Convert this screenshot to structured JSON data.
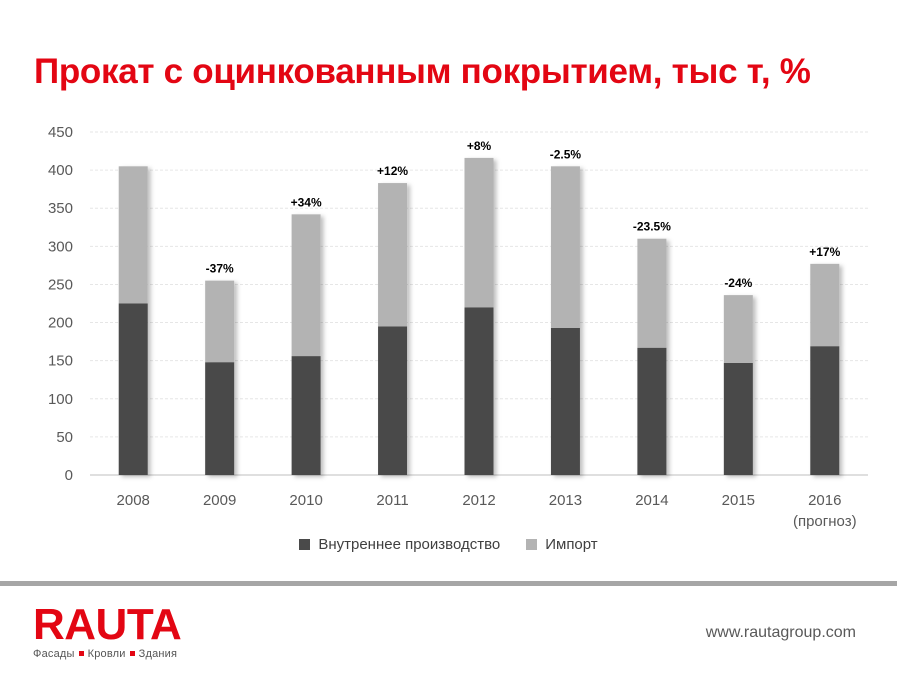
{
  "slide": {
    "title": "Прокат с оцинкованным покрытием, тыс т, %",
    "title_color": "#e30613"
  },
  "chart_data": {
    "type": "bar",
    "stacked": true,
    "categories": [
      "2008",
      "2009",
      "2010",
      "2011",
      "2012",
      "2013",
      "2014",
      "2015",
      "2016"
    ],
    "category_sublabels": [
      "",
      "",
      "",
      "",
      "",
      "",
      "",
      "",
      "(прогноз)"
    ],
    "series": [
      {
        "name": "Внутреннее производство",
        "color": "#4a4a4a",
        "values": [
          225,
          148,
          156,
          195,
          220,
          193,
          167,
          147,
          169
        ]
      },
      {
        "name": "Импорт",
        "color": "#b3b3b3",
        "values": [
          180,
          107,
          186,
          188,
          196,
          212,
          143,
          89,
          108
        ]
      }
    ],
    "annotations": [
      "",
      "-37%",
      "+34%",
      "+12%",
      "+8%",
      "-2.5%",
      "-23.5%",
      "-24%",
      "+17%"
    ],
    "ylim": [
      0,
      450
    ],
    "yticks": [
      0,
      50,
      100,
      150,
      200,
      250,
      300,
      350,
      400,
      450
    ],
    "grid": true,
    "legend_position": "bottom"
  },
  "footer": {
    "brand": "RAUTA",
    "brand_color": "#e30613",
    "tagline": [
      "Фасады",
      "Кровли",
      "Здания"
    ],
    "website": "www.rautagroup.com"
  }
}
